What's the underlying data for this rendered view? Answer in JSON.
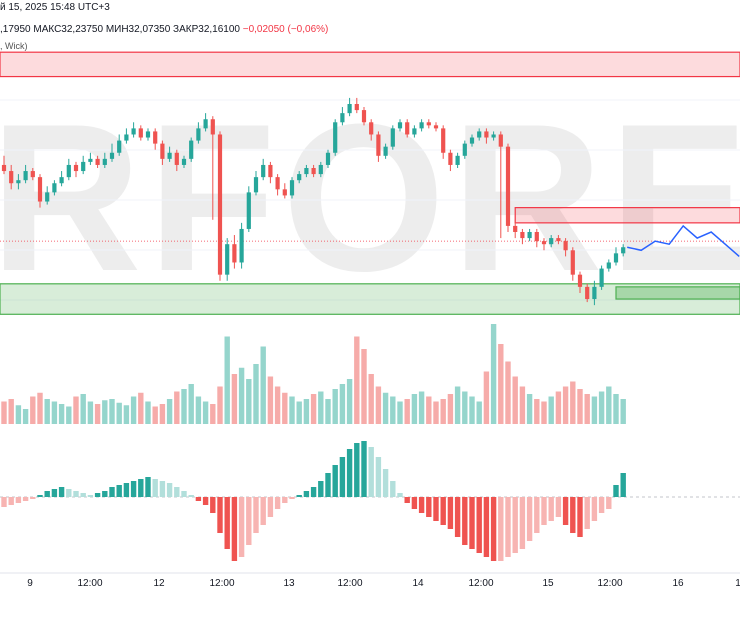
{
  "header": {
    "datetime": "й 15, 2025 15:48 UTC+3"
  },
  "quote": {
    "open": ",17950",
    "high": "МАКС32,23750",
    "low": "МИН32,07350",
    "close": "ЗАКР32,16100",
    "change": "−0,02050 (−0,06%)"
  },
  "indicator_label": ", Wick)",
  "watermark": "RFOREX",
  "colors": {
    "up": "#26a69a",
    "down": "#ef5350",
    "up_light": "#b2dfdb",
    "down_light": "#f7b4b2",
    "forecast": "#2962ff",
    "resistance": "#f23645",
    "support": "#4caf50"
  },
  "chart_data": {
    "type": "candlestick",
    "x_ticks": [
      "9",
      "12:00",
      "12",
      "12:00",
      "13",
      "12:00",
      "14",
      "12:00",
      "15",
      "12:00",
      "16",
      "1"
    ],
    "ylim": [
      0,
      100
    ],
    "candles": [
      [
        84,
        82,
        87,
        81
      ],
      [
        82,
        78,
        84,
        76
      ],
      [
        78,
        79,
        81,
        76
      ],
      [
        79,
        82,
        84,
        78
      ],
      [
        82,
        80,
        83,
        79
      ],
      [
        80,
        72,
        81,
        70
      ],
      [
        72,
        75,
        77,
        71
      ],
      [
        75,
        78,
        79,
        74
      ],
      [
        78,
        80,
        82,
        77
      ],
      [
        80,
        84,
        86,
        79
      ],
      [
        84,
        82,
        85,
        80
      ],
      [
        82,
        85,
        87,
        81
      ],
      [
        85,
        86,
        88,
        84
      ],
      [
        86,
        84,
        87,
        83
      ],
      [
        84,
        86,
        88,
        83
      ],
      [
        86,
        88,
        91,
        85
      ],
      [
        88,
        92,
        94,
        87
      ],
      [
        92,
        94,
        96,
        91
      ],
      [
        94,
        96,
        98,
        93
      ],
      [
        96,
        93,
        97,
        92
      ],
      [
        93,
        95,
        96,
        92
      ],
      [
        95,
        91,
        96,
        89
      ],
      [
        91,
        86,
        92,
        84
      ],
      [
        86,
        88,
        90,
        85
      ],
      [
        88,
        84,
        89,
        82
      ],
      [
        84,
        86,
        87,
        83
      ],
      [
        86,
        92,
        93,
        85
      ],
      [
        92,
        96,
        98,
        91
      ],
      [
        96,
        99,
        101,
        95
      ],
      [
        99,
        94,
        100,
        66
      ],
      [
        94,
        48,
        95,
        46
      ],
      [
        48,
        58,
        60,
        46
      ],
      [
        58,
        52,
        61,
        50
      ],
      [
        52,
        63,
        65,
        50
      ],
      [
        63,
        75,
        77,
        62
      ],
      [
        75,
        80,
        82,
        74
      ],
      [
        80,
        84,
        86,
        79
      ],
      [
        84,
        80,
        85,
        78
      ],
      [
        80,
        76,
        81,
        74
      ],
      [
        76,
        74,
        78,
        73
      ],
      [
        74,
        79,
        80,
        73
      ],
      [
        79,
        81,
        82,
        78
      ],
      [
        81,
        83,
        84,
        80
      ],
      [
        83,
        81,
        84,
        80
      ],
      [
        81,
        84,
        85,
        80
      ],
      [
        84,
        88,
        89,
        83
      ],
      [
        88,
        98,
        99,
        87
      ],
      [
        98,
        101,
        103,
        97
      ],
      [
        101,
        104,
        106,
        100
      ],
      [
        104,
        102,
        106,
        101
      ],
      [
        102,
        98,
        103,
        97
      ],
      [
        98,
        94,
        99,
        92
      ],
      [
        94,
        87,
        95,
        85
      ],
      [
        87,
        90,
        91,
        86
      ],
      [
        90,
        96,
        97,
        89
      ],
      [
        96,
        98,
        99,
        95
      ],
      [
        98,
        94,
        99,
        93
      ],
      [
        94,
        96,
        97,
        93
      ],
      [
        96,
        98,
        99,
        95
      ],
      [
        98,
        97,
        99,
        96
      ],
      [
        97,
        96,
        98,
        95
      ],
      [
        96,
        88,
        97,
        86
      ],
      [
        88,
        84,
        89,
        82
      ],
      [
        84,
        87,
        88,
        83
      ],
      [
        87,
        91,
        92,
        86
      ],
      [
        91,
        93,
        94,
        90
      ],
      [
        93,
        95,
        96,
        92
      ],
      [
        95,
        93,
        96,
        91
      ],
      [
        93,
        94,
        95,
        92
      ],
      [
        94,
        90,
        95,
        60
      ],
      [
        90,
        64,
        91,
        62
      ],
      [
        64,
        62,
        66,
        60
      ],
      [
        62,
        60,
        63,
        58
      ],
      [
        60,
        62,
        63,
        59
      ],
      [
        62,
        59,
        63,
        57
      ],
      [
        59,
        58,
        60,
        56
      ],
      [
        58,
        60,
        61,
        57
      ],
      [
        60,
        59,
        61,
        58
      ],
      [
        59,
        56,
        60,
        54
      ],
      [
        56,
        48,
        57,
        46
      ],
      [
        48,
        44,
        49,
        42
      ],
      [
        44,
        40,
        45,
        39
      ],
      [
        40,
        44,
        46,
        38
      ],
      [
        44,
        50,
        51,
        43
      ],
      [
        50,
        52,
        53,
        49
      ],
      [
        52,
        55,
        57,
        51
      ],
      [
        55,
        57,
        58,
        54
      ]
    ],
    "forecast_path": [
      57,
      56,
      59,
      58,
      64,
      60,
      62,
      58,
      54
    ],
    "resistance_zones": [
      {
        "y_top": 121,
        "y_bottom": 113
      },
      {
        "y_top": 70,
        "y_bottom": 65
      }
    ],
    "support_zones": [
      {
        "y_top": 45,
        "y_bottom": 35
      },
      {
        "y_top": 44,
        "y_bottom": 40
      }
    ],
    "current_price_level": 59,
    "volume": [
      18,
      20,
      15,
      12,
      22,
      25,
      20,
      18,
      16,
      14,
      22,
      24,
      18,
      16,
      19,
      20,
      17,
      15,
      22,
      25,
      18,
      14,
      16,
      20,
      26,
      28,
      32,
      22,
      18,
      16,
      30,
      70,
      40,
      45,
      36,
      48,
      62,
      38,
      30,
      25,
      22,
      18,
      20,
      24,
      26,
      20,
      28,
      32,
      36,
      70,
      60,
      40,
      30,
      25,
      22,
      18,
      20,
      24,
      26,
      22,
      18,
      20,
      24,
      30,
      26,
      22,
      18,
      42,
      80,
      64,
      50,
      38,
      30,
      24,
      20,
      18,
      22,
      26,
      30,
      34,
      28,
      24,
      22,
      26,
      30,
      24,
      20
    ],
    "oscillator": [
      -5,
      -4,
      -3,
      -2,
      -1,
      1,
      3,
      4,
      5,
      4,
      3,
      2,
      1,
      2,
      3,
      5,
      6,
      7,
      8,
      9,
      10,
      9,
      8,
      7,
      5,
      3,
      1,
      -2,
      -4,
      -8,
      -18,
      -26,
      -32,
      -30,
      -24,
      -18,
      -14,
      -10,
      -6,
      -3,
      -1,
      1,
      3,
      5,
      8,
      12,
      16,
      20,
      24,
      27,
      28,
      25,
      20,
      14,
      8,
      2,
      -3,
      -6,
      -8,
      -10,
      -12,
      -14,
      -16,
      -20,
      -24,
      -26,
      -28,
      -30,
      -32,
      -32,
      -30,
      -28,
      -26,
      -22,
      -18,
      -14,
      -12,
      -10,
      -14,
      -18,
      -20,
      -16,
      -12,
      -8,
      -6,
      6,
      12
    ]
  }
}
